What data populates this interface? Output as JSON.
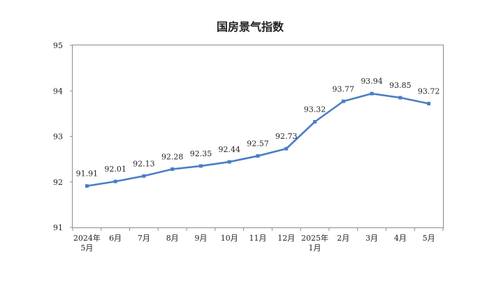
{
  "chart_data": {
    "type": "line",
    "title": "国房景气指数",
    "xlabel": "",
    "ylabel": "",
    "ylim": [
      91,
      95
    ],
    "y_ticks": [
      "91",
      "92",
      "93",
      "94",
      "95"
    ],
    "categories": [
      "2024年5月",
      "6月",
      "7月",
      "8月",
      "9月",
      "10月",
      "11月",
      "12月",
      "2025年1月",
      "2月",
      "3月",
      "4月",
      "5月"
    ],
    "category_lines": [
      [
        "2024年",
        "5月"
      ],
      [
        "6月"
      ],
      [
        "7月"
      ],
      [
        "8月"
      ],
      [
        "9月"
      ],
      [
        "10月"
      ],
      [
        "11月"
      ],
      [
        "12月"
      ],
      [
        "2025年",
        "1月"
      ],
      [
        "2月"
      ],
      [
        "3月"
      ],
      [
        "4月"
      ],
      [
        "5月"
      ]
    ],
    "values": [
      91.91,
      92.01,
      92.13,
      92.28,
      92.35,
      92.44,
      92.57,
      92.73,
      93.32,
      93.77,
      93.94,
      93.85,
      93.72
    ],
    "value_labels": [
      "91.91",
      "92.01",
      "92.13",
      "92.28",
      "92.35",
      "92.44",
      "92.57",
      "92.73",
      "93.32",
      "93.77",
      "93.94",
      "93.85",
      "93.72"
    ],
    "grid": false,
    "legend": "none",
    "line_color": "#4a7fc4"
  }
}
